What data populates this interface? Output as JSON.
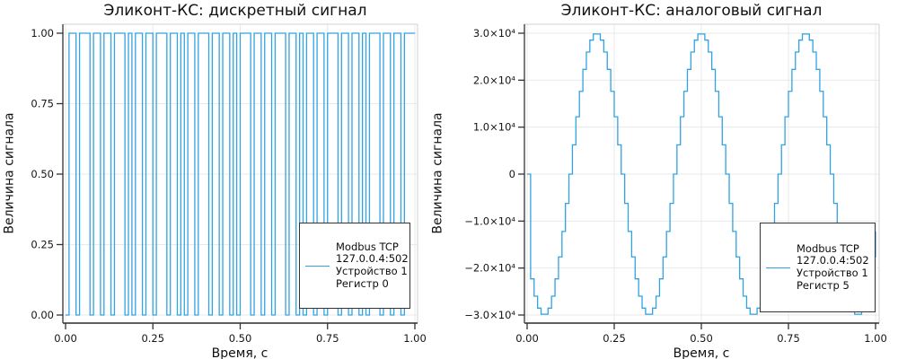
{
  "style": {
    "series_color": "#31A3E2",
    "grid_color": "#E9E9E9",
    "frame_light_color": "#D2D2D2",
    "axis_color": "#333333",
    "bottom_spine_color": "#4A4A4A",
    "text_color": "#151515",
    "legend_border_color": "#333333",
    "legend_bg": "#FFFFFF",
    "background": "#FFFFFF"
  },
  "chart_data": [
    {
      "type": "line",
      "interpolation": "step-post",
      "title": "Эликонт-КС: дискретный сигнал",
      "xlabel": "Время, с",
      "ylabel": "Величина сигнала",
      "legend": [
        "Modbus TCP",
        "127.0.0.4:502",
        "Устройство 1",
        "Регистр 0"
      ],
      "legend_position": "bottom-right",
      "grid": true,
      "xlim": [
        0.0,
        1.0
      ],
      "ylim": [
        0.0,
        1.0
      ],
      "xticks": [
        0.0,
        0.25,
        0.5,
        0.75,
        1.0
      ],
      "xtick_labels": [
        "0.00",
        "0.25",
        "0.50",
        "0.75",
        "1.00"
      ],
      "yticks": [
        0.0,
        0.25,
        0.5,
        0.75,
        1.0
      ],
      "ytick_labels": [
        "0.00",
        "0.25",
        "0.50",
        "0.75",
        "1.00"
      ],
      "x_start": 0.0,
      "sample_period_s": 0.01,
      "values": [
        0,
        1,
        1,
        0,
        1,
        1,
        1,
        0,
        1,
        1,
        0,
        1,
        1,
        0,
        1,
        1,
        1,
        0,
        1,
        0,
        1,
        1,
        0,
        1,
        1,
        0,
        1,
        1,
        1,
        0,
        1,
        1,
        0,
        1,
        0,
        1,
        1,
        0,
        1,
        1,
        1,
        0,
        1,
        1,
        0,
        1,
        1,
        0,
        1,
        0,
        1,
        1,
        1,
        0,
        1,
        1,
        0,
        1,
        1,
        0,
        1,
        1,
        1,
        0,
        1,
        1,
        0,
        1,
        0,
        1,
        1,
        0,
        1,
        1,
        0,
        1,
        1,
        1,
        0,
        1,
        1,
        0,
        1,
        1,
        0,
        1,
        0,
        1,
        1,
        1,
        0,
        1,
        1,
        0,
        1,
        1,
        0,
        1,
        1,
        1,
        1
      ]
    },
    {
      "type": "line",
      "interpolation": "step-post",
      "title": "Эликонт-КС: аналоговый сигнал",
      "xlabel": "Время, с",
      "ylabel": "Величина сигнала",
      "legend": [
        "Modbus TCP",
        "127.0.0.4:502",
        "Устройство 1",
        "Регистр 5"
      ],
      "legend_position": "bottom-right",
      "grid": true,
      "xlim": [
        0.0,
        1.0
      ],
      "ylim": [
        -30000,
        30000
      ],
      "xticks": [
        0.0,
        0.25,
        0.5,
        0.75,
        1.0
      ],
      "xtick_labels": [
        "0.00",
        "0.25",
        "0.50",
        "0.75",
        "1.00"
      ],
      "yticks": [
        -30000,
        -20000,
        -10000,
        0,
        10000,
        20000,
        30000
      ],
      "ytick_labels": [
        "−3.0×10⁴",
        "−2.0×10⁴",
        "−1.0×10⁴",
        "0",
        "1.0×10⁴",
        "2.0×10⁴",
        "3.0×10⁴"
      ],
      "x_start": 0.0,
      "sample_period_s": 0.01,
      "values": [
        0,
        -22294,
        -25981,
        -28532,
        -29836,
        -29836,
        -28532,
        -25981,
        -22294,
        -17634,
        -12202,
        -6237,
        0,
        6237,
        12202,
        17634,
        22294,
        25981,
        28532,
        29836,
        29836,
        28532,
        25981,
        22294,
        17634,
        12202,
        6237,
        0,
        -6237,
        -12202,
        -17634,
        -22294,
        -25981,
        -28532,
        -29836,
        -29836,
        -28532,
        -25981,
        -22294,
        -17634,
        -12202,
        -6237,
        0,
        6237,
        12202,
        17634,
        22294,
        25981,
        28532,
        29836,
        29836,
        28532,
        25981,
        22294,
        17634,
        12202,
        6237,
        0,
        -6237,
        -12202,
        -17634,
        -22294,
        -25981,
        -28532,
        -29836,
        -29836,
        -28532,
        -25981,
        -22294,
        -17634,
        -12202,
        -6237,
        0,
        6237,
        12202,
        17634,
        22294,
        25981,
        28532,
        29836,
        29836,
        28532,
        25981,
        22294,
        17634,
        12202,
        6237,
        0,
        -6237,
        -12202,
        -17634,
        -22294,
        -25981,
        -28532,
        -29836,
        -29836,
        -28532,
        -25981,
        -22294,
        -17634,
        -12202
      ]
    }
  ]
}
